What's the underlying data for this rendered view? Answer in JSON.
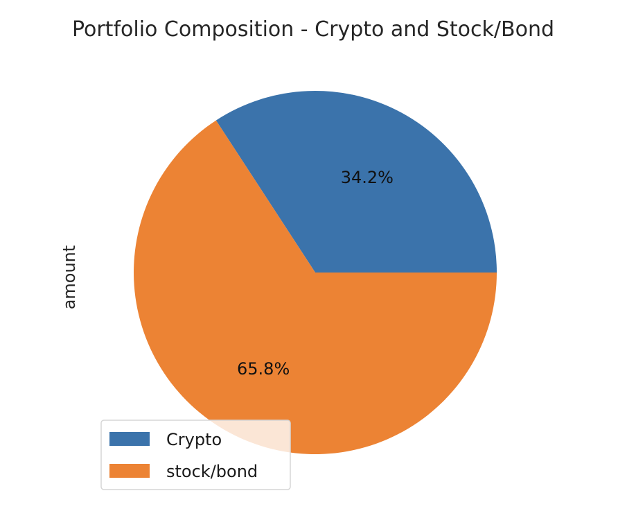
{
  "chart_data": {
    "type": "pie",
    "title": "Portfolio Composition - Crypto and Stock/Bond",
    "ylabel": "amount",
    "categories": [
      "Crypto",
      "stock/bond"
    ],
    "percent_labels": [
      "34.2%",
      "65.8%"
    ],
    "values": [
      34.2,
      65.8
    ],
    "colors": [
      "#3b73ab",
      "#ec8334"
    ],
    "legend": {
      "placement": "lower-left",
      "entries": [
        "Crypto",
        "stock/bond"
      ]
    },
    "start_angle_deg": 0,
    "direction": "counterclockwise"
  }
}
